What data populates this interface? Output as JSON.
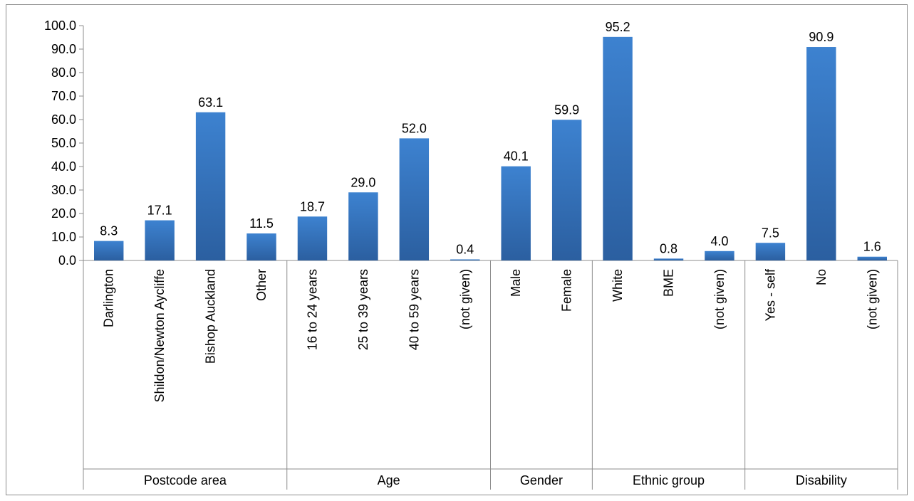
{
  "chart_data": {
    "type": "bar",
    "title": "",
    "xlabel": "",
    "ylabel": "",
    "ylim": [
      0,
      100
    ],
    "ytick_step": 10,
    "ytick_labels": [
      "0.0",
      "10.0",
      "20.0",
      "30.0",
      "40.0",
      "50.0",
      "60.0",
      "70.0",
      "80.0",
      "90.0",
      "100.0"
    ],
    "grid": false,
    "legend": "none",
    "bar_color": "#3a7cc9",
    "bar_color_dark": "#2e63a6",
    "groups": [
      {
        "name": "Postcode area",
        "categories": [
          "Darlington",
          "Shildon/Newton Aycliffe",
          "Bishop Auckland",
          "Other"
        ],
        "values": [
          8.3,
          17.1,
          63.1,
          11.5
        ],
        "labels": [
          "8.3",
          "17.1",
          "63.1",
          "11.5"
        ]
      },
      {
        "name": "Age",
        "categories": [
          "16 to 24 years",
          "25 to 39 years",
          "40 to 59 years",
          "(not given)"
        ],
        "values": [
          18.7,
          29.0,
          52.0,
          0.4
        ],
        "labels": [
          "18.7",
          "29.0",
          "52.0",
          "0.4"
        ]
      },
      {
        "name": "Gender",
        "categories": [
          "Male",
          "Female"
        ],
        "values": [
          40.1,
          59.9
        ],
        "labels": [
          "40.1",
          "59.9"
        ]
      },
      {
        "name": "Ethnic group",
        "categories": [
          "White",
          "BME",
          "(not given)"
        ],
        "values": [
          95.2,
          0.8,
          4.0
        ],
        "labels": [
          "95.2",
          "0.8",
          "4.0"
        ]
      },
      {
        "name": "Disability",
        "categories": [
          "Yes - self",
          "No",
          "(not given)"
        ],
        "values": [
          7.5,
          90.9,
          1.6
        ],
        "labels": [
          "7.5",
          "90.9",
          "1.6"
        ]
      }
    ]
  }
}
